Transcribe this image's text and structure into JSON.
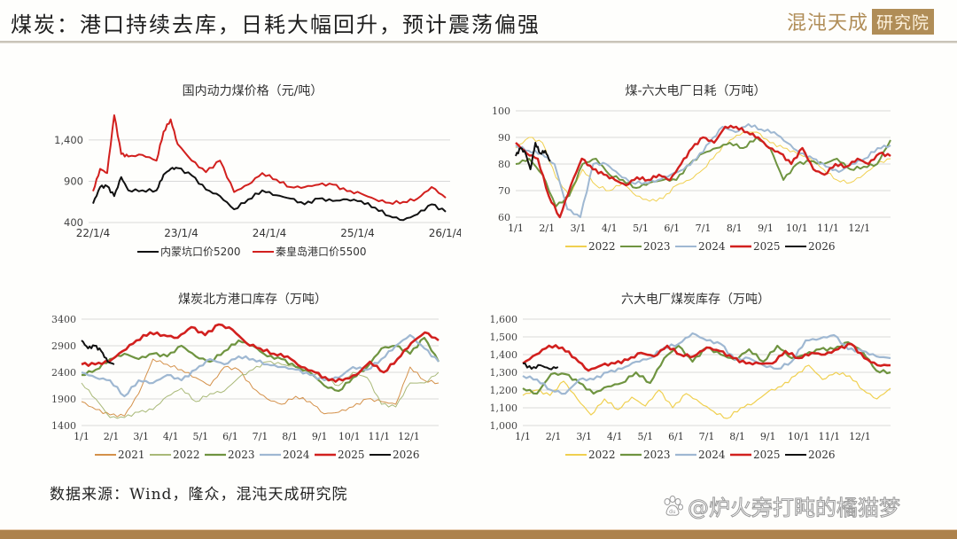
{
  "header": {
    "title": "煤炭：港口持续去库，日耗大幅回升，预计震荡偏强",
    "logo_text": "混沌天成",
    "logo_box": "研究院"
  },
  "footer": {
    "source": "数据来源：Wind，隆众，混沌天成研究院",
    "watermark": "@炉火旁打盹的橘猫梦",
    "bar_color": "#ad824c"
  },
  "colors": {
    "2021": "#d4914a",
    "2022": "#f0d050",
    "2022_green": "#a9b978",
    "2023": "#6f9440",
    "2024": "#9fb8d2",
    "2025": "#d2201e",
    "2026": "#111111",
    "nm5200": "#111111",
    "qhd5500": "#d2201e"
  },
  "chart_data": [
    {
      "id": "price",
      "type": "line",
      "title": "国内动力煤价格（元/吨）",
      "xlabel": "",
      "ylabel": "",
      "ylim": [
        400,
        1700
      ],
      "yticks": [
        400,
        900,
        1400
      ],
      "ytick_labels": [
        "400",
        "900",
        "1,400"
      ],
      "xtick_labels": [
        "22/1/4",
        "23/1/4",
        "24/1/4",
        "25/1/4",
        "26/1/4"
      ],
      "grid": true,
      "legend_position": "bottom",
      "series": [
        {
          "name": "内蒙坑口价5200",
          "color": "#111111",
          "x": [
            0,
            0.02,
            0.04,
            0.06,
            0.08,
            0.1,
            0.14,
            0.18,
            0.2,
            0.22,
            0.24,
            0.28,
            0.32,
            0.36,
            0.4,
            0.44,
            0.48,
            0.52,
            0.56,
            0.6,
            0.64,
            0.68,
            0.72,
            0.76,
            0.8,
            0.84,
            0.88,
            0.92,
            0.96,
            1.0
          ],
          "values": [
            630,
            830,
            840,
            720,
            950,
            790,
            790,
            790,
            980,
            1050,
            1060,
            970,
            800,
            720,
            560,
            680,
            790,
            730,
            690,
            620,
            690,
            660,
            680,
            660,
            580,
            480,
            430,
            500,
            620,
            530
          ]
        },
        {
          "name": "秦皇岛港口价5500",
          "color": "#d2201e",
          "x": [
            0,
            0.02,
            0.04,
            0.06,
            0.08,
            0.1,
            0.14,
            0.18,
            0.2,
            0.22,
            0.24,
            0.28,
            0.32,
            0.36,
            0.4,
            0.44,
            0.48,
            0.52,
            0.56,
            0.6,
            0.64,
            0.68,
            0.72,
            0.76,
            0.8,
            0.84,
            0.88,
            0.92,
            0.96,
            1.0
          ],
          "values": [
            780,
            1050,
            1000,
            1700,
            1230,
            1200,
            1220,
            1150,
            1500,
            1650,
            1350,
            1150,
            1010,
            1150,
            770,
            860,
            1000,
            920,
            830,
            830,
            860,
            860,
            780,
            750,
            680,
            640,
            650,
            690,
            830,
            700
          ]
        }
      ]
    },
    {
      "id": "daily_consumption",
      "type": "line",
      "title": "煤-六大电厂日耗（万吨）",
      "ylim": [
        60,
        100
      ],
      "yticks": [
        60,
        70,
        80,
        90,
        100
      ],
      "ytick_labels": [
        "60",
        "70",
        "80",
        "90",
        "100"
      ],
      "xtick_labels": [
        "1/1",
        "2/1",
        "3/1",
        "4/1",
        "5/1",
        "6/1",
        "7/1",
        "8/1",
        "9/1",
        "10/1",
        "11/1",
        "12/1"
      ],
      "grid": true,
      "legend_position": "bottom",
      "series": [
        {
          "name": "2022",
          "color": "#f0d050",
          "width": 1,
          "values": [
            86,
            90,
            88,
            75,
            68,
            78,
            72,
            70,
            73,
            68,
            66,
            67,
            72,
            74,
            78,
            84,
            89,
            92,
            92,
            88,
            86,
            84,
            82,
            78,
            74,
            73,
            76,
            80,
            82
          ]
        },
        {
          "name": "2023",
          "color": "#6f9440",
          "width": 2,
          "values": [
            80,
            82,
            76,
            64,
            68,
            80,
            82,
            76,
            74,
            71,
            73,
            74,
            74,
            80,
            84,
            86,
            88,
            86,
            90,
            86,
            74,
            80,
            81,
            80,
            82,
            78,
            79,
            80,
            89
          ]
        },
        {
          "name": "2024",
          "color": "#9fb8d2",
          "width": 2,
          "values": [
            87,
            85,
            84,
            80,
            63,
            60,
            80,
            80,
            76,
            73,
            73,
            74,
            76,
            78,
            82,
            88,
            94,
            92,
            95,
            93,
            92,
            88,
            84,
            82,
            79,
            77,
            80,
            82,
            86,
            87
          ]
        },
        {
          "name": "2025",
          "color": "#d2201e",
          "width": 2.4,
          "values": [
            88,
            84,
            82,
            68,
            60,
            72,
            82,
            78,
            76,
            74,
            72,
            75,
            74,
            76,
            74,
            80,
            86,
            90,
            88,
            94,
            94,
            92,
            90,
            86,
            84,
            80,
            86,
            78,
            76,
            80,
            79,
            82,
            80,
            84,
            83
          ]
        },
        {
          "name": "2026",
          "color": "#111111",
          "width": 2,
          "values": [
            83,
            86,
            84,
            78,
            88,
            84,
            85,
            81
          ]
        }
      ]
    },
    {
      "id": "port_inventory",
      "type": "line",
      "title": "煤炭北方港口库存（万吨）",
      "ylim": [
        1400,
        3400
      ],
      "yticks": [
        1400,
        1900,
        2400,
        2900,
        3400
      ],
      "ytick_labels": [
        "1400",
        "1900",
        "2400",
        "2900",
        "3400"
      ],
      "xtick_labels": [
        "1/1",
        "2/1",
        "3/1",
        "4/1",
        "5/1",
        "6/1",
        "7/1",
        "8/1",
        "9/1",
        "10/1",
        "11/1",
        "12/1"
      ],
      "grid": true,
      "legend_position": "bottom",
      "series": [
        {
          "name": "2021",
          "color": "#d4914a",
          "width": 1,
          "values": [
            1850,
            1700,
            1600,
            1580,
            2000,
            2650,
            2550,
            2450,
            2300,
            2150,
            2500,
            2450,
            2100,
            1900,
            1800,
            1950,
            1850,
            1620,
            1650,
            1750,
            1900,
            1850,
            1800,
            2500,
            2250,
            2200
          ]
        },
        {
          "name": "2022",
          "color": "#a9b978",
          "width": 1,
          "values": [
            2200,
            1900,
            1550,
            1550,
            1650,
            1700,
            1950,
            2100,
            1850,
            2000,
            2050,
            2300,
            2450,
            2600,
            2550,
            2500,
            2400,
            2300,
            2150,
            2400,
            2300,
            1800,
            1750,
            2200,
            2200,
            2400
          ]
        },
        {
          "name": "2023",
          "color": "#6f9440",
          "width": 2.2,
          "values": [
            2350,
            2450,
            2650,
            2750,
            2650,
            2750,
            2700,
            2900,
            2700,
            2600,
            2800,
            3000,
            2900,
            2700,
            2650,
            2500,
            2400,
            2150,
            2050,
            2300,
            2500,
            2850,
            2900,
            2750,
            3050,
            2600
          ]
        },
        {
          "name": "2024",
          "color": "#9fb8d2",
          "width": 2.2,
          "values": [
            2400,
            2300,
            2250,
            1950,
            2250,
            2200,
            2350,
            2250,
            2450,
            2650,
            2550,
            2700,
            2650,
            2550,
            2500,
            2450,
            2350,
            2250,
            2300,
            2500,
            2450,
            2650,
            2900,
            3100,
            2850,
            2600
          ]
        },
        {
          "name": "2025",
          "color": "#d2201e",
          "width": 2.6,
          "values": [
            2550,
            2550,
            2600,
            2800,
            3000,
            3150,
            3100,
            3050,
            3250,
            3100,
            3300,
            3200,
            2950,
            2850,
            2750,
            2700,
            2500,
            2400,
            2250,
            2250,
            2350,
            2600,
            2400,
            2650,
            2950,
            3150,
            3000
          ]
        },
        {
          "name": "2026",
          "color": "#111111",
          "width": 2,
          "values": [
            3000,
            2850,
            2900,
            2800,
            2600,
            2550
          ]
        }
      ]
    },
    {
      "id": "plant_inventory",
      "type": "line",
      "title": "六大电厂煤炭库存（万吨）",
      "ylim": [
        1000,
        1600
      ],
      "yticks": [
        1000,
        1100,
        1200,
        1300,
        1400,
        1500,
        1600
      ],
      "ytick_labels": [
        "1,000",
        "1,100",
        "1,200",
        "1,300",
        "1,400",
        "1,500",
        "1,600"
      ],
      "xtick_labels": [
        "1/1",
        "2/1",
        "3/1",
        "4/1",
        "5/1",
        "6/1",
        "7/1",
        "8/1",
        "9/1",
        "10/1",
        "11/1",
        "12/1"
      ],
      "grid": true,
      "legend_position": "bottom",
      "series": [
        {
          "name": "2022",
          "color": "#f0d050",
          "width": 1.2,
          "values": [
            1170,
            1200,
            1170,
            1250,
            1150,
            1060,
            1150,
            1090,
            1160,
            1110,
            1200,
            1100,
            1180,
            1130,
            1080,
            1040,
            1100,
            1130,
            1190,
            1220,
            1280,
            1340,
            1260,
            1300,
            1280,
            1200,
            1150,
            1210
          ]
        },
        {
          "name": "2023",
          "color": "#6f9440",
          "width": 2.2,
          "values": [
            1210,
            1180,
            1290,
            1290,
            1240,
            1180,
            1220,
            1240,
            1300,
            1240,
            1380,
            1450,
            1360,
            1440,
            1400,
            1370,
            1430,
            1360,
            1450,
            1380,
            1400,
            1430,
            1430,
            1470,
            1420,
            1310,
            1300
          ]
        },
        {
          "name": "2024",
          "color": "#9fb8d2",
          "width": 2.2,
          "values": [
            1280,
            1260,
            1200,
            1180,
            1260,
            1260,
            1300,
            1320,
            1360,
            1380,
            1440,
            1460,
            1520,
            1480,
            1460,
            1370,
            1380,
            1340,
            1320,
            1360,
            1480,
            1490,
            1510,
            1430,
            1420,
            1390,
            1380
          ]
        },
        {
          "name": "2025",
          "color": "#d2201e",
          "width": 2.6,
          "values": [
            1350,
            1400,
            1450,
            1440,
            1380,
            1310,
            1340,
            1350,
            1370,
            1410,
            1390,
            1450,
            1400,
            1390,
            1440,
            1420,
            1380,
            1350,
            1350,
            1350,
            1420,
            1380,
            1410,
            1400,
            1430,
            1460,
            1380,
            1340,
            1340
          ]
        },
        {
          "name": "2026",
          "color": "#111111",
          "width": 2,
          "values": [
            1350,
            1320,
            1340,
            1320,
            1330
          ]
        }
      ]
    }
  ]
}
